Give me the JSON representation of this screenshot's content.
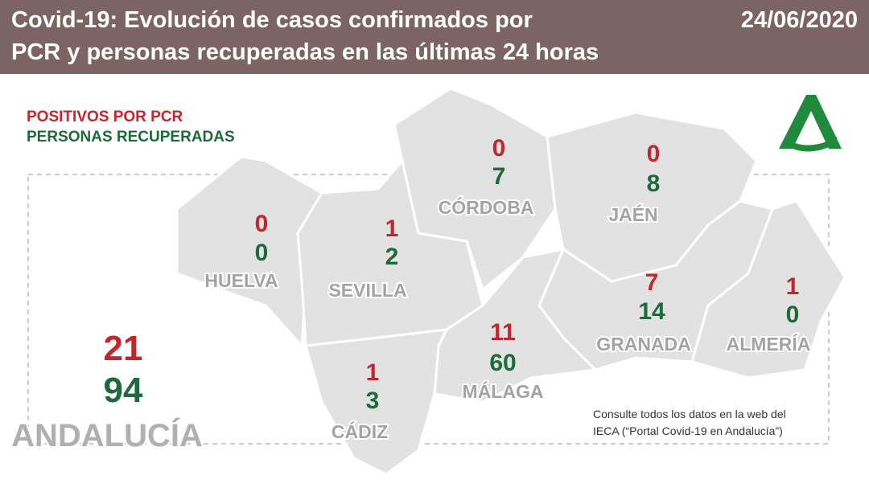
{
  "header": {
    "title_lines": [
      "Covid-19: Evolución de casos confirmados por",
      "PCR y personas recuperadas en las últimas 24 horas"
    ],
    "date": "24/06/2020"
  },
  "legend": {
    "positives": "POSITIVOS POR PCR",
    "recovered": "PERSONAS RECUPERADAS"
  },
  "provinces": [
    {
      "name": "HUELVA",
      "positives": 0,
      "recovered": 0
    },
    {
      "name": "SEVILLA",
      "positives": 1,
      "recovered": 2
    },
    {
      "name": "CÓRDOBA",
      "positives": 0,
      "recovered": 7
    },
    {
      "name": "JAÉN",
      "positives": 0,
      "recovered": 8
    },
    {
      "name": "GRANADA",
      "positives": 7,
      "recovered": 14
    },
    {
      "name": "ALMERÍA",
      "positives": 1,
      "recovered": 0
    },
    {
      "name": "MÁLAGA",
      "positives": 11,
      "recovered": 60
    },
    {
      "name": "CÁDIZ",
      "positives": 1,
      "recovered": 3
    }
  ],
  "total": {
    "name": "ANDALUCÍA",
    "positives": 21,
    "recovered": 94
  },
  "footnote": [
    "Consulte todos los datos en la web del",
    "IECA (“Portal Covid-19 en Andalucía”)"
  ]
}
